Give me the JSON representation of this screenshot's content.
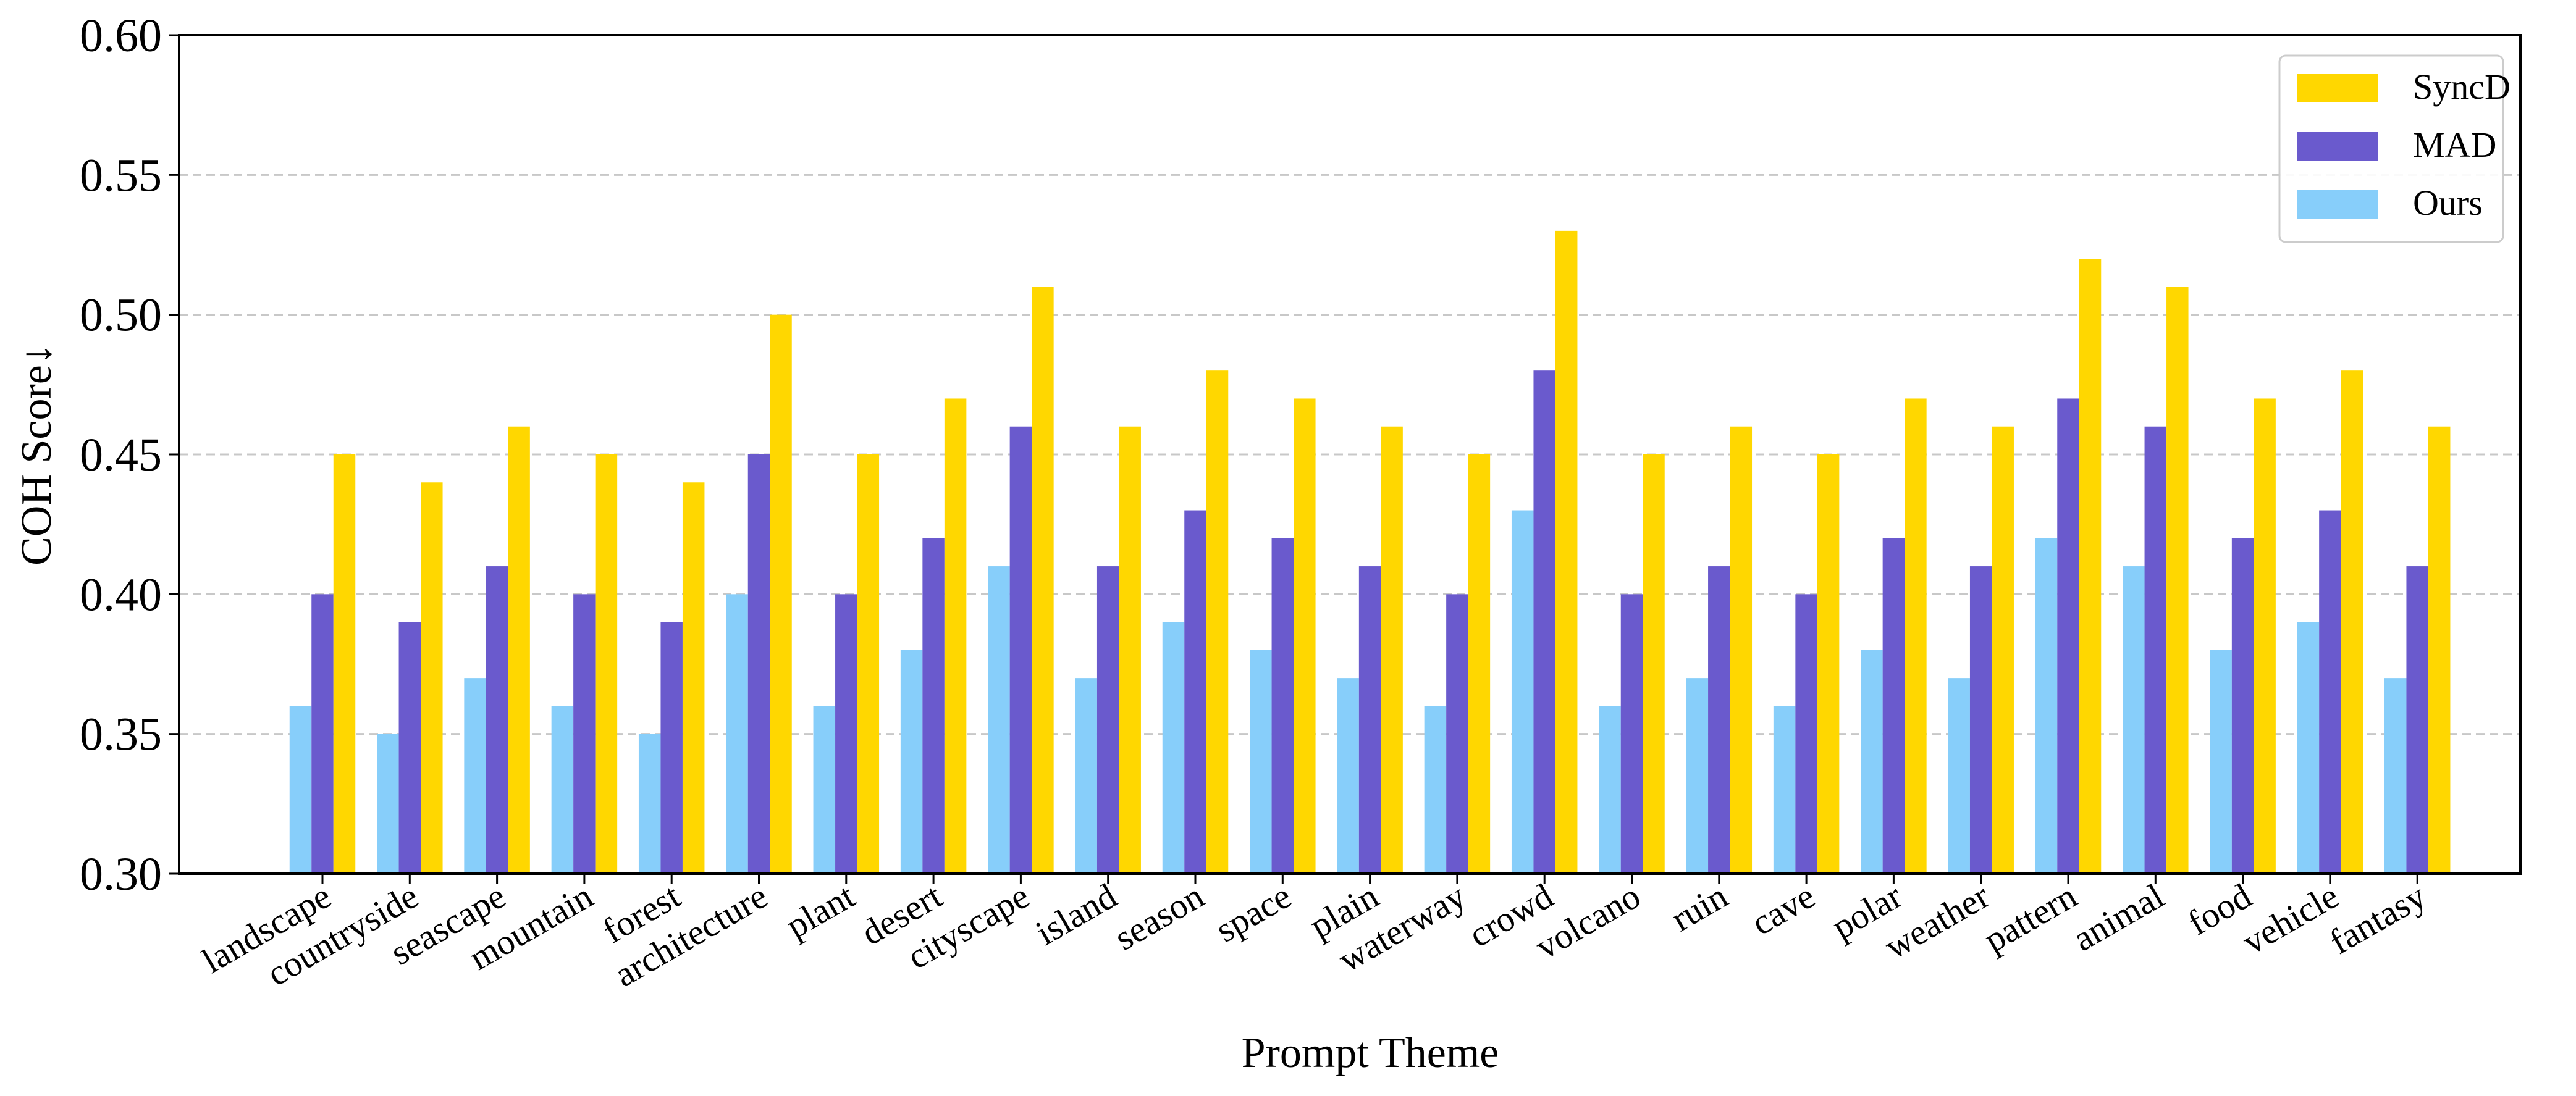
{
  "chart_data": {
    "type": "bar",
    "xlabel": "Prompt Theme",
    "ylabel": "COH Score↓",
    "ylim": [
      0.3,
      0.6
    ],
    "yticks": [
      "0.30",
      "0.35",
      "0.40",
      "0.45",
      "0.50",
      "0.55",
      "0.60"
    ],
    "grid": "horizontal dashed",
    "legend_position": "top-right",
    "categories": [
      "landscape",
      "countryside",
      "seascape",
      "mountain",
      "forest",
      "architecture",
      "plant",
      "desert",
      "cityscape",
      "island",
      "season",
      "space",
      "plain",
      "waterway",
      "crowd",
      "volcano",
      "ruin",
      "cave",
      "polar",
      "weather",
      "pattern",
      "animal",
      "food",
      "vehicle",
      "fantasy"
    ],
    "series": [
      {
        "name": "Ours",
        "color": "#87CEFA",
        "values": [
          0.36,
          0.35,
          0.37,
          0.36,
          0.35,
          0.4,
          0.36,
          0.38,
          0.41,
          0.37,
          0.39,
          0.38,
          0.37,
          0.36,
          0.43,
          0.36,
          0.37,
          0.36,
          0.38,
          0.37,
          0.42,
          0.41,
          0.38,
          0.39,
          0.37
        ]
      },
      {
        "name": "MAD",
        "color": "#6A5ACD",
        "values": [
          0.4,
          0.39,
          0.41,
          0.4,
          0.39,
          0.45,
          0.4,
          0.42,
          0.46,
          0.41,
          0.43,
          0.42,
          0.41,
          0.4,
          0.48,
          0.4,
          0.41,
          0.4,
          0.42,
          0.41,
          0.47,
          0.46,
          0.42,
          0.43,
          0.41
        ]
      },
      {
        "name": "SyncD",
        "color": "#FFD700",
        "values": [
          0.45,
          0.44,
          0.46,
          0.45,
          0.44,
          0.5,
          0.45,
          0.47,
          0.51,
          0.46,
          0.48,
          0.47,
          0.46,
          0.45,
          0.53,
          0.45,
          0.46,
          0.45,
          0.47,
          0.46,
          0.52,
          0.51,
          0.47,
          0.48,
          0.46
        ]
      }
    ],
    "legend_order": [
      "SyncD",
      "MAD",
      "Ours"
    ]
  }
}
